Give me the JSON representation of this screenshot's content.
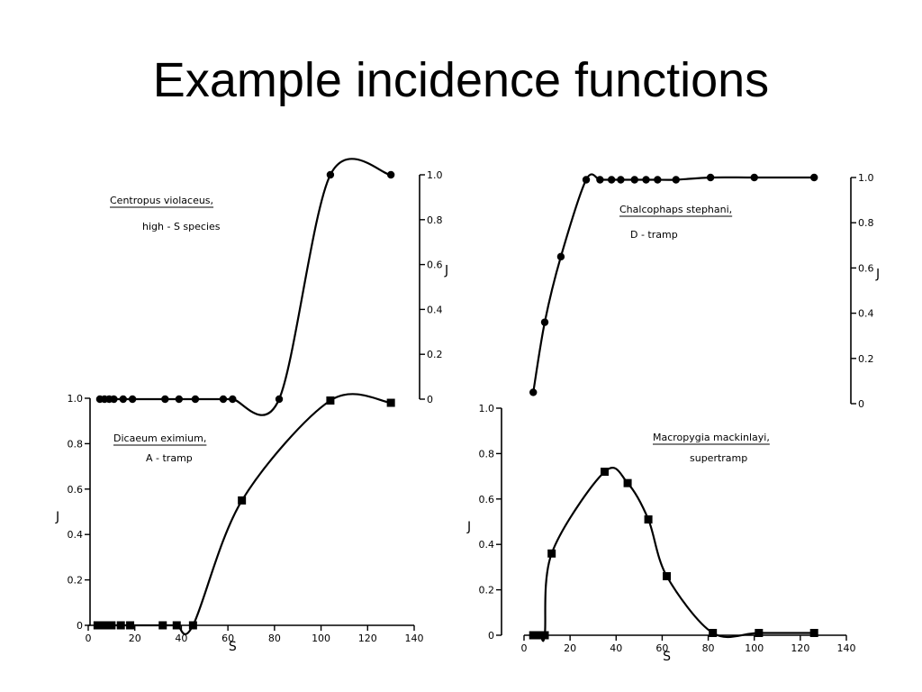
{
  "slide": {
    "title": "Example incidence functions"
  },
  "chart_data": [
    {
      "type": "line",
      "species": "Centropus violaceus,",
      "note": "high - S species",
      "marker": "circle",
      "xlabel": "S",
      "ylabel": "J",
      "xlim": [
        0,
        140
      ],
      "ylim": [
        0,
        1.0
      ],
      "x_ticks": [
        "0",
        "20",
        "40",
        "60",
        "80",
        "100",
        "120",
        "140"
      ],
      "y_ticks": [
        "0",
        "0.2",
        "0.4",
        "0.6",
        "0.8",
        "1.0"
      ],
      "x": [
        5,
        7,
        9,
        11,
        15,
        19,
        33,
        39,
        46,
        58,
        62,
        82,
        104,
        130
      ],
      "y": [
        0,
        0,
        0,
        0,
        0,
        0,
        0,
        0,
        0,
        0,
        0,
        0,
        1.0,
        1.0
      ]
    },
    {
      "type": "line",
      "species": "Dicaeum eximium,",
      "note": "A - tramp",
      "marker": "square",
      "xlabel": "S",
      "ylabel": "J",
      "xlim": [
        0,
        140
      ],
      "ylim": [
        0,
        1.0
      ],
      "x_ticks": [
        "0",
        "20",
        "40",
        "60",
        "80",
        "100",
        "120",
        "140"
      ],
      "y_ticks": [
        "0",
        "0.2",
        "0.4",
        "0.6",
        "0.8",
        "1.0"
      ],
      "x": [
        4,
        7,
        10,
        14,
        18,
        32,
        38,
        45,
        66,
        104,
        130
      ],
      "y": [
        0,
        0,
        0,
        0,
        0,
        0,
        0,
        0,
        0.55,
        0.99,
        0.98
      ]
    },
    {
      "type": "line",
      "species": "Chalcophaps stephani,",
      "note": "D - tramp",
      "marker": "circle",
      "xlabel": "S",
      "ylabel": "J",
      "xlim": [
        0,
        140
      ],
      "ylim": [
        0,
        1.0
      ],
      "x_ticks": [
        "0",
        "20",
        "40",
        "60",
        "80",
        "100",
        "120",
        "140"
      ],
      "y_ticks": [
        "0",
        "0.2",
        "0.4",
        "0.6",
        "0.8",
        "1.0"
      ],
      "x": [
        4,
        9,
        16,
        27,
        33,
        38,
        42,
        48,
        53,
        58,
        66,
        81,
        100,
        126
      ],
      "y": [
        0.05,
        0.36,
        0.65,
        0.99,
        0.99,
        0.99,
        0.99,
        0.99,
        0.99,
        0.99,
        0.99,
        1.0,
        1.0,
        1.0
      ]
    },
    {
      "type": "line",
      "species": "Macropygia mackinlayi,",
      "note": "supertramp",
      "marker": "square",
      "xlabel": "S",
      "ylabel": "J",
      "xlim": [
        0,
        140
      ],
      "ylim": [
        0,
        1.0
      ],
      "x_ticks": [
        "0",
        "20",
        "40",
        "60",
        "80",
        "100",
        "120",
        "140"
      ],
      "y_ticks": [
        "0",
        "0.2",
        "0.4",
        "0.6",
        "0.8",
        "1.0"
      ],
      "x": [
        4,
        7,
        9,
        12,
        35,
        45,
        54,
        62,
        82,
        102,
        126
      ],
      "y": [
        0,
        0,
        0,
        0.36,
        0.72,
        0.67,
        0.51,
        0.26,
        0.01,
        0.01,
        0.01
      ]
    }
  ]
}
